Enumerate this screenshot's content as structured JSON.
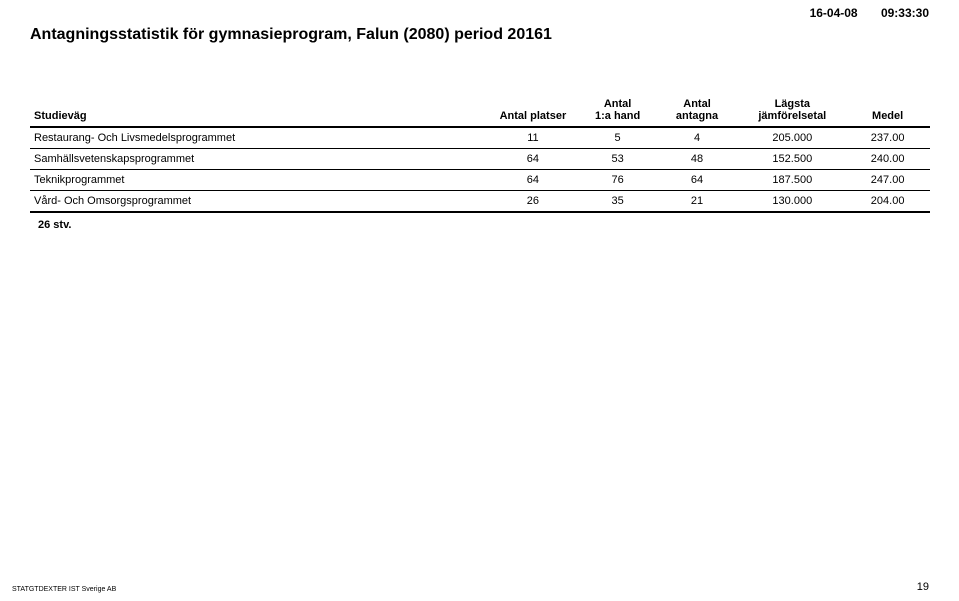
{
  "header": {
    "date": "16-04-08",
    "time": "09:33:30",
    "title": "Antagningsstatistik för gymnasieprogram,  Falun (2080) period 20161"
  },
  "table": {
    "columns": {
      "studievag": "Studieväg",
      "platser": "Antal platser",
      "firsthand_l1": "Antal",
      "firsthand_l2": "1:a hand",
      "antagna_l1": "Antal",
      "antagna_l2": "antagna",
      "jamfor_l1": "Lägsta",
      "jamfor_l2": "jämförelsetal",
      "medel": "Medel"
    },
    "rows": [
      {
        "name": "Restaurang- Och Livsmedelsprogrammet",
        "platser": "11",
        "firsthand": "5",
        "antagna": "4",
        "jamfor": "205.000",
        "medel": "237.00"
      },
      {
        "name": "Samhällsvetenskapsprogrammet",
        "platser": "64",
        "firsthand": "53",
        "antagna": "48",
        "jamfor": "152.500",
        "medel": "240.00"
      },
      {
        "name": "Teknikprogrammet",
        "platser": "64",
        "firsthand": "76",
        "antagna": "64",
        "jamfor": "187.500",
        "medel": "247.00"
      },
      {
        "name": "Vård- Och Omsorgsprogrammet",
        "platser": "26",
        "firsthand": "35",
        "antagna": "21",
        "jamfor": "130.000",
        "medel": "204.00"
      }
    ],
    "summary": "26   stv."
  },
  "footer": {
    "left": "STATGTDEXTER IST Sverige AB",
    "page": "19"
  }
}
